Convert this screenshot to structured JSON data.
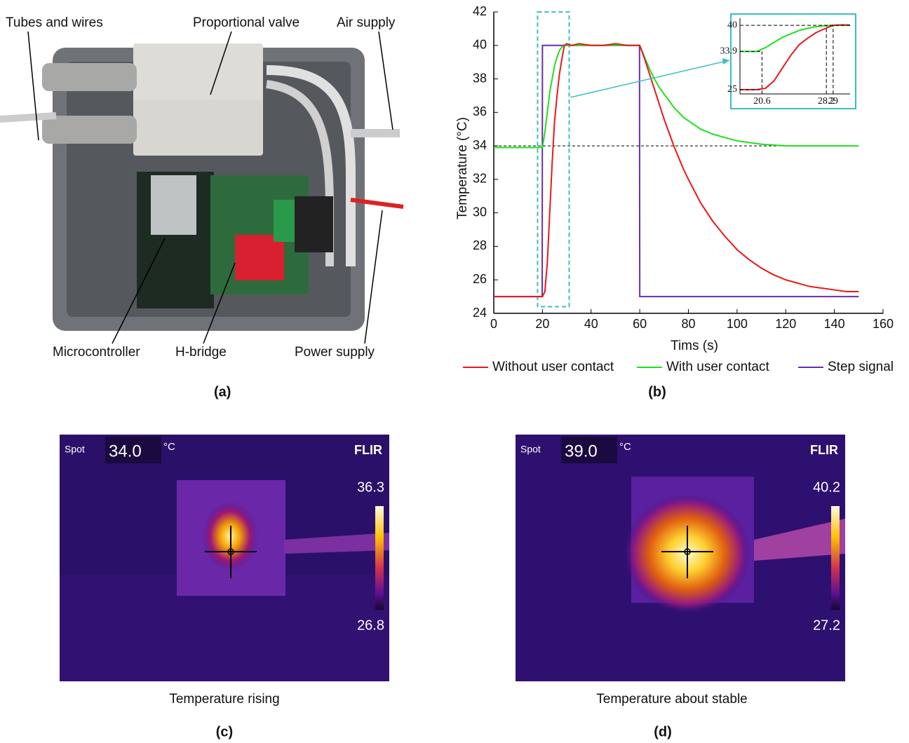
{
  "panel_a": {
    "labels": [
      "Tubes and wires",
      "Proportional valve",
      "Air supply",
      "Microcontroller",
      "H-bridge",
      "Power supply"
    ],
    "caption": "(a)"
  },
  "chart_data": {
    "type": "line",
    "ylabel": "Temperature (°C)",
    "xlabel": "Tims (s)",
    "caption": "(b)",
    "x": [
      0,
      5,
      10,
      15,
      18,
      19.9,
      20,
      21,
      22,
      23,
      24,
      25,
      26,
      27,
      28,
      29,
      30,
      32,
      35,
      40,
      45,
      50,
      55,
      59.9,
      60,
      62,
      64,
      66,
      68,
      70,
      72,
      74,
      76,
      78,
      80,
      85,
      90,
      95,
      100,
      105,
      110,
      115,
      120,
      125,
      130,
      135,
      140,
      145,
      150
    ],
    "series": [
      {
        "name": "Without user contact",
        "color": "#e8191a",
        "values": [
          25,
          25,
          25,
          25,
          25,
          25,
          25,
          25.3,
          27,
          30,
          33,
          35.5,
          37,
          38.3,
          39.2,
          40,
          40.1,
          40,
          40.1,
          40,
          40,
          40.1,
          40,
          40,
          40,
          39.2,
          38.3,
          37.4,
          36.5,
          35.6,
          34.8,
          34,
          33.3,
          32.6,
          32,
          30.6,
          29.5,
          28.6,
          27.8,
          27.2,
          26.7,
          26.3,
          26,
          25.8,
          25.6,
          25.5,
          25.4,
          25.3,
          25.3
        ]
      },
      {
        "name": "With user contact",
        "color": "#1fe01f",
        "values": [
          33.9,
          33.9,
          33.9,
          33.9,
          33.9,
          33.9,
          33.9,
          34.8,
          36,
          37.2,
          38,
          38.8,
          39.3,
          39.7,
          39.9,
          40,
          40,
          40,
          40,
          40,
          40,
          40,
          40,
          40,
          40,
          39.3,
          38.6,
          38,
          37.5,
          37.1,
          36.7,
          36.3,
          36,
          35.7,
          35.5,
          35,
          34.7,
          34.5,
          34.3,
          34.2,
          34.1,
          34.05,
          34,
          34,
          34,
          34,
          34,
          34,
          34
        ]
      },
      {
        "name": "Step signal",
        "color": "#6a2fa8",
        "values": [
          25,
          25,
          25,
          25,
          25,
          25,
          40,
          40,
          40,
          40,
          40,
          40,
          40,
          40,
          40,
          40,
          40,
          40,
          40,
          40,
          40,
          40,
          40,
          40,
          25,
          25,
          25,
          25,
          25,
          25,
          25,
          25,
          25,
          25,
          25,
          25,
          25,
          25,
          25,
          25,
          25,
          25,
          25,
          25,
          25,
          25,
          25,
          25,
          25
        ]
      }
    ],
    "xlim": [
      0,
      160
    ],
    "xticks": [
      0,
      20,
      40,
      60,
      80,
      100,
      120,
      140,
      160
    ],
    "ylim": [
      24,
      42
    ],
    "yticks": [
      24,
      26,
      28,
      30,
      32,
      34,
      36,
      38,
      40,
      42
    ],
    "hline": 34,
    "highlight": {
      "x": [
        18,
        31
      ],
      "y": [
        24.4,
        42
      ]
    },
    "inset": {
      "xlim": [
        18,
        31
      ],
      "ylim": [
        24,
        41
      ],
      "xticks": [
        20.6,
        28.2,
        29
      ],
      "yticks": [
        25,
        33.9,
        40
      ]
    }
  },
  "panel_c": {
    "spot_label": "Spot",
    "spot_value": "34.0",
    "unit": "°C",
    "brand": "FLIR",
    "scale_max": "36.3",
    "scale_min": "26.8",
    "title": "Temperature rising",
    "caption": "(c)"
  },
  "panel_d": {
    "spot_label": "Spot",
    "spot_value": "39.0",
    "unit": "°C",
    "brand": "FLIR",
    "scale_max": "40.2",
    "scale_min": "27.2",
    "title": "Temperature about stable",
    "caption": "(d)"
  }
}
